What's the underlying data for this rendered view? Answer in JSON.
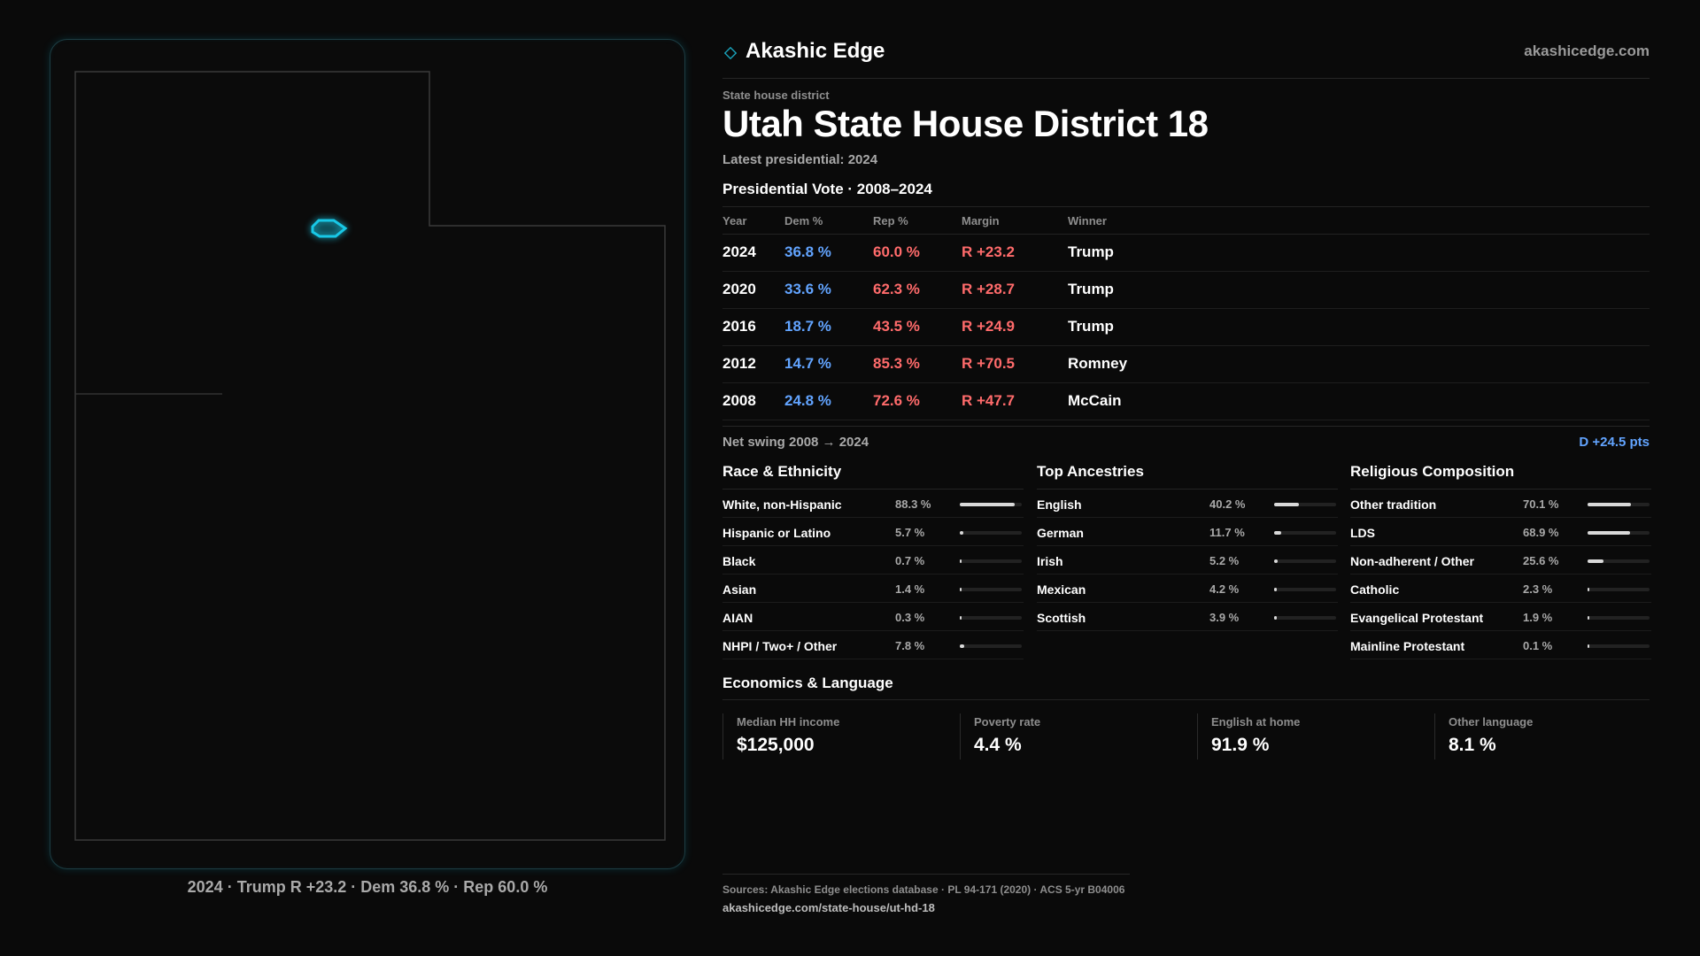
{
  "map": {
    "caption": "2024 · Trump R +23.2 · Dem 36.8 % · Rep 60.0 %",
    "state_outline_color": "#3a3a3a",
    "district_highlight_color": "#18c8e6"
  },
  "header": {
    "brand_icon": "diamond-icon",
    "brand_name": "Akashic Edge",
    "brand_url": "akashicedge.com"
  },
  "district": {
    "eyebrow": "State house district",
    "title": "Utah State House District 18",
    "latest": "Latest presidential: 2024"
  },
  "vote": {
    "title": "Presidential Vote · 2008–2024",
    "columns": [
      "Year",
      "Dem %",
      "Rep %",
      "Margin",
      "Winner"
    ],
    "rows": [
      {
        "year": "2024",
        "dem": "36.8 %",
        "rep": "60.0 %",
        "margin": "R +23.2",
        "winner": "Trump"
      },
      {
        "year": "2020",
        "dem": "33.6 %",
        "rep": "62.3 %",
        "margin": "R +28.7",
        "winner": "Trump"
      },
      {
        "year": "2016",
        "dem": "18.7 %",
        "rep": "43.5 %",
        "margin": "R +24.9",
        "winner": "Trump"
      },
      {
        "year": "2012",
        "dem": "14.7 %",
        "rep": "85.3 %",
        "margin": "R +70.5",
        "winner": "Romney"
      },
      {
        "year": "2008",
        "dem": "24.8 %",
        "rep": "72.6 %",
        "margin": "R +47.7",
        "winner": "McCain"
      }
    ],
    "swing_label": "Net swing 2008 → 2024",
    "swing_value": "D +24.5 pts",
    "dem_color": "#62a4ff",
    "rep_color": "#ff6b6b"
  },
  "race": {
    "title": "Race & Ethnicity",
    "rows": [
      {
        "label": "White, non-Hispanic",
        "value": "88.3 %",
        "share": 0.883
      },
      {
        "label": "Hispanic or Latino",
        "value": "5.7 %",
        "share": 0.057
      },
      {
        "label": "Black",
        "value": "0.7 %",
        "share": 0.007
      },
      {
        "label": "Asian",
        "value": "1.4 %",
        "share": 0.014
      },
      {
        "label": "AIAN",
        "value": "0.3 %",
        "share": 0.003
      },
      {
        "label": "NHPI / Two+ / Other",
        "value": "7.8 %",
        "share": 0.078
      }
    ]
  },
  "ancestry": {
    "title": "Top Ancestries",
    "rows": [
      {
        "label": "English",
        "value": "40.2 %",
        "share": 0.402
      },
      {
        "label": "German",
        "value": "11.7 %",
        "share": 0.117
      },
      {
        "label": "Irish",
        "value": "5.2 %",
        "share": 0.052
      },
      {
        "label": "Mexican",
        "value": "4.2 %",
        "share": 0.042
      },
      {
        "label": "Scottish",
        "value": "3.9 %",
        "share": 0.039
      }
    ]
  },
  "religion": {
    "title": "Religious Composition",
    "rows": [
      {
        "label": "Other tradition",
        "value": "70.1 %",
        "share": 0.701
      },
      {
        "label": "LDS",
        "value": "68.9 %",
        "share": 0.689
      },
      {
        "label": "Non-adherent / Other",
        "value": "25.6 %",
        "share": 0.256
      },
      {
        "label": "Catholic",
        "value": "2.3 %",
        "share": 0.023
      },
      {
        "label": "Evangelical Protestant",
        "value": "1.9 %",
        "share": 0.019
      },
      {
        "label": "Mainline Protestant",
        "value": "0.1 %",
        "share": 0.001
      }
    ]
  },
  "economics": {
    "title": "Economics & Language",
    "stats": [
      {
        "label": "Median HH income",
        "value": "$125,000"
      },
      {
        "label": "Poverty rate",
        "value": "4.4 %"
      },
      {
        "label": "English at home",
        "value": "91.9 %"
      },
      {
        "label": "Other language",
        "value": "8.1 %"
      }
    ]
  },
  "footer": {
    "sources": "Sources: Akashic Edge elections database · PL 94-171 (2020) · ACS 5-yr B04006",
    "url": "akashicedge.com/state-house/ut-hd-18"
  }
}
